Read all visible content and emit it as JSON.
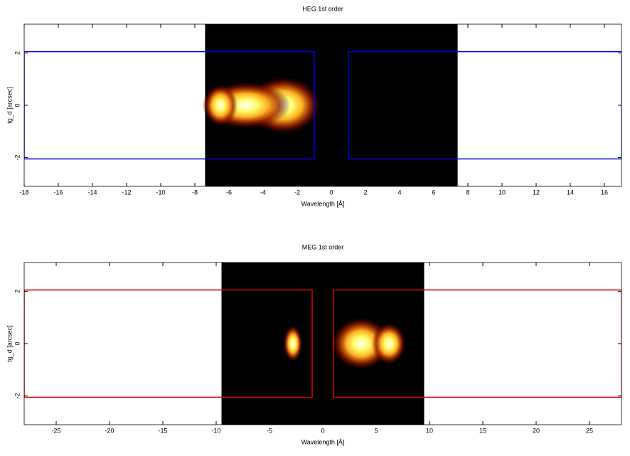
{
  "chart_data": [
    {
      "type": "image",
      "title": "HEG 1st order",
      "xlabel": "Wavelength [Å]",
      "ylabel": "tg_d [arcsec]",
      "xlim": [
        -18,
        17
      ],
      "ylim": [
        -3.1,
        3.1
      ],
      "xticks": [
        -18,
        -16,
        -14,
        -12,
        -10,
        -8,
        -6,
        -4,
        -2,
        0,
        2,
        4,
        6,
        8,
        10,
        12,
        14,
        16
      ],
      "yticks": [
        -2,
        0,
        2
      ],
      "image_xlim": [
        -7.4,
        7.4
      ],
      "blobs": [
        {
          "x": -2.8,
          "width": 2.2,
          "height": 1.1
        },
        {
          "x": -5,
          "width": 2.6,
          "height": 0.9
        },
        {
          "x": -6.5,
          "width": 1,
          "height": 0.8
        }
      ],
      "region_color": "#0000ee",
      "regions": [
        {
          "x": [
            -18,
            -1
          ],
          "y": [
            -2.05,
            2.05
          ]
        },
        {
          "x": [
            1,
            17
          ],
          "y": [
            -2.05,
            2.05
          ]
        }
      ]
    },
    {
      "type": "image",
      "title": "MEG 1st order",
      "xlabel": "Wavelength [Å]",
      "ylabel": "tg_d [arcsec]",
      "xlim": [
        -28,
        28
      ],
      "ylim": [
        -3.1,
        3.1
      ],
      "xticks": [
        -25,
        -20,
        -15,
        -10,
        -5,
        0,
        5,
        10,
        15,
        20,
        25
      ],
      "yticks": [
        -2,
        0,
        2
      ],
      "image_xlim": [
        -9.5,
        9.5
      ],
      "blobs": [
        {
          "x": -2.8,
          "width": 0.9,
          "height": 0.7
        },
        {
          "x": 3.6,
          "width": 2.8,
          "height": 1.0
        },
        {
          "x": 6.2,
          "width": 1.6,
          "height": 0.8
        }
      ],
      "region_color": "#dd0000",
      "regions": [
        {
          "x": [
            -28,
            -1
          ],
          "y": [
            -2.05,
            2.05
          ]
        },
        {
          "x": [
            1,
            28
          ],
          "y": [
            -2.05,
            2.05
          ]
        }
      ]
    }
  ]
}
